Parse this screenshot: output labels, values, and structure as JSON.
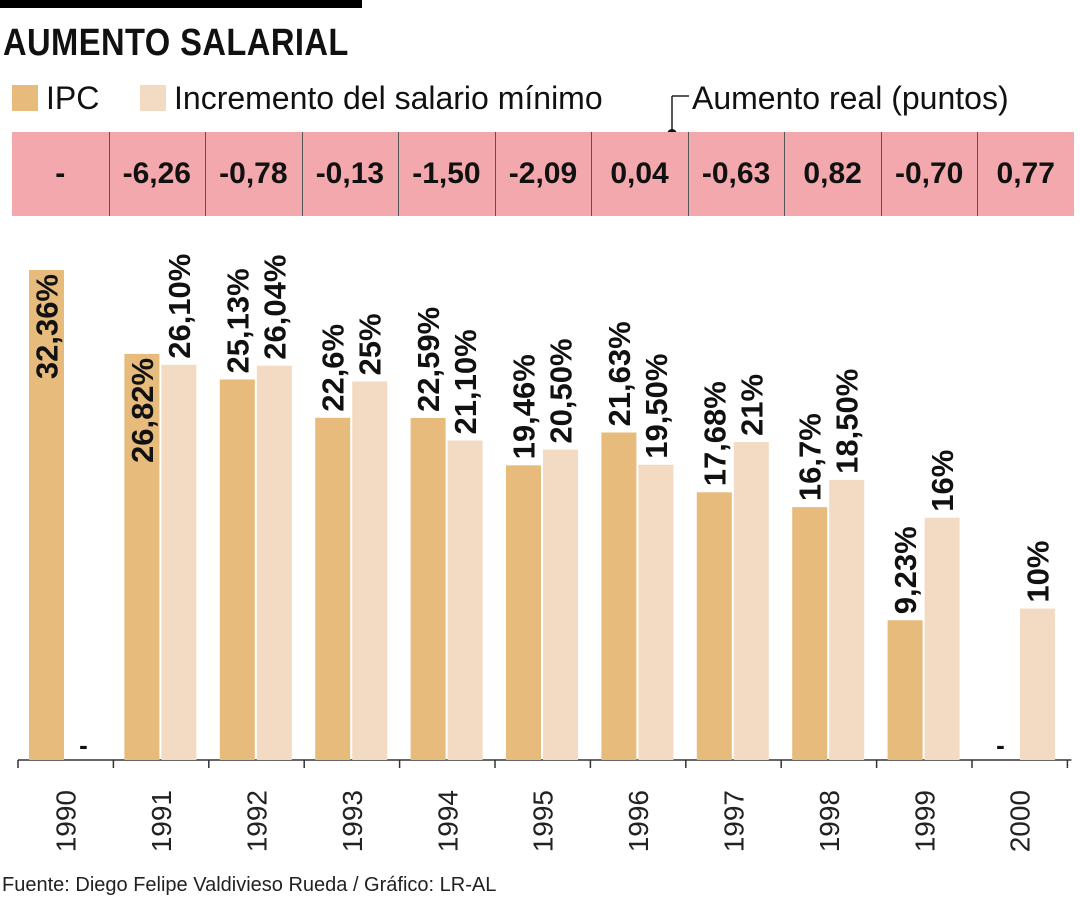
{
  "title": "AUMENTO SALARIAL",
  "legend": {
    "ipc": "IPC",
    "salario": "Incremento del salario mínimo",
    "real": "Aumento real (puntos)"
  },
  "colors": {
    "ipc": "#e6bb7c",
    "salario": "#f2dbc2",
    "real_strip": "#f2a8ac"
  },
  "real_values": [
    "-",
    "-6,26",
    "-0,78",
    "-0,13",
    "-1,50",
    "-2,09",
    "0,04",
    "-0,63",
    "0,82",
    "-0,70",
    "0,77"
  ],
  "footer": "Fuente: Diego Felipe Valdivieso Rueda / Gráfico: LR-AL",
  "chart_data": {
    "type": "bar",
    "categories": [
      "1990",
      "1991",
      "1992",
      "1993",
      "1994",
      "1995",
      "1996",
      "1997",
      "1998",
      "1999",
      "2000"
    ],
    "series": [
      {
        "name": "IPC",
        "values": [
          32.36,
          26.82,
          25.13,
          22.6,
          22.59,
          19.46,
          21.63,
          17.68,
          16.7,
          9.23,
          null
        ],
        "labels": [
          "32,36%",
          "26,82%",
          "25,13%",
          "22,6%",
          "22,59%",
          "19,46%",
          "21,63%",
          "17,68%",
          "16,7%",
          "9,23%",
          "-"
        ]
      },
      {
        "name": "Incremento del salario mínimo",
        "values": [
          null,
          26.1,
          26.04,
          25,
          21.1,
          20.5,
          19.5,
          21,
          18.5,
          16,
          10
        ],
        "labels": [
          "-",
          "26,10%",
          "26,04%",
          "25%",
          "21,10%",
          "20,50%",
          "19,50%",
          "21%",
          "18,50%",
          "16%",
          "10%"
        ]
      }
    ],
    "ylim": [
      0,
      35
    ],
    "grid": false
  }
}
